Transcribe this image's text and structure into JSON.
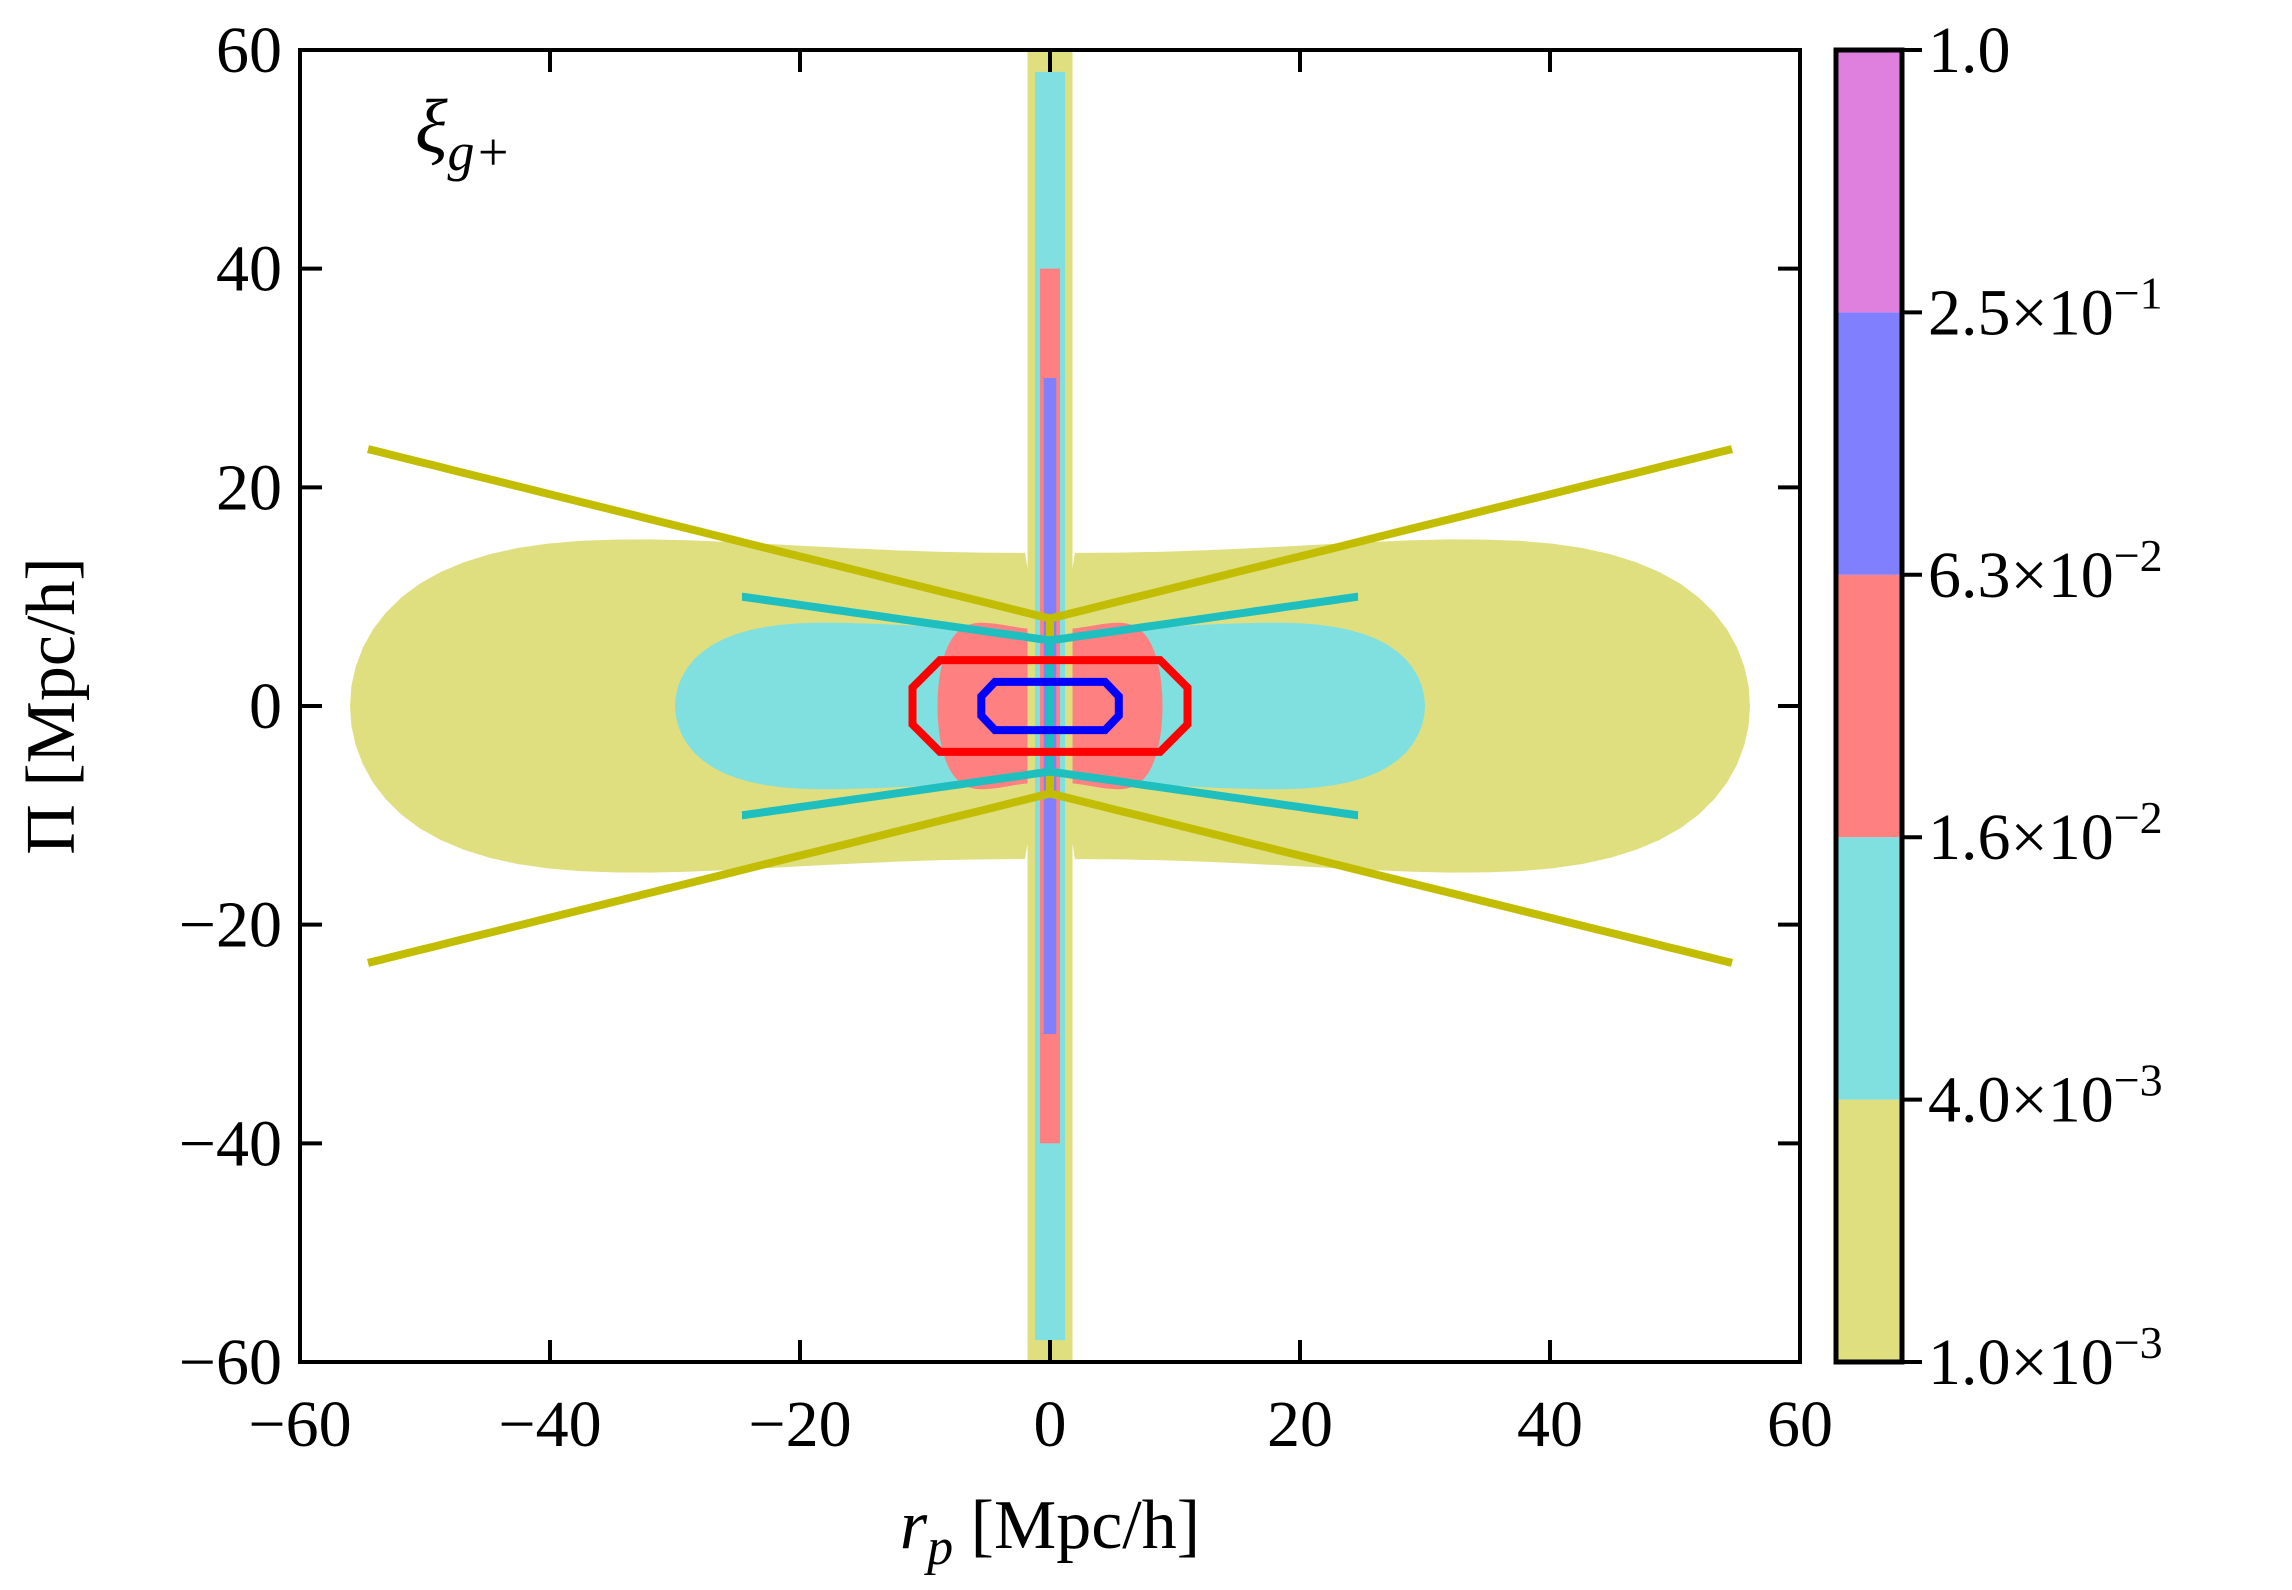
{
  "chart_data": {
    "type": "contour",
    "annotation": {
      "symbol": "ξ",
      "subscript": "g+"
    },
    "xlabel": {
      "var": "r",
      "sub": "p",
      "unit": " [Mpc/h]"
    },
    "ylabel": "Π [Mpc/h]",
    "xlim": [
      -60,
      60
    ],
    "ylim": [
      -60,
      60
    ],
    "xticks": [
      -60,
      -40,
      -20,
      0,
      20,
      40,
      60
    ],
    "yticks": [
      -60,
      -40,
      -20,
      0,
      20,
      40,
      60
    ],
    "xtick_labels": [
      "−60",
      "−40",
      "−20",
      "0",
      "20",
      "40",
      "60"
    ],
    "ytick_labels": [
      "−60",
      "−40",
      "−20",
      "0",
      "20",
      "40",
      "60"
    ],
    "colorbar": {
      "levels": [
        {
          "mant": "1.0",
          "exp": "−3"
        },
        {
          "mant": "4.0",
          "exp": "−3"
        },
        {
          "mant": "1.6",
          "exp": "−2"
        },
        {
          "mant": "6.3",
          "exp": "−2"
        },
        {
          "mant": "2.5",
          "exp": "−1"
        },
        {
          "mant": "1.0",
          "exp": ""
        }
      ],
      "colors": [
        "#dfdf80",
        "#80dfdf",
        "#ff8080",
        "#8080ff",
        "#df80df"
      ]
    },
    "filled_regions": [
      {
        "level": 0,
        "color": "#dfdf80",
        "lobes": {
          "rp": 56,
          "pi": 28,
          "inner": 2
        }
      },
      {
        "level": 1,
        "color": "#80dfdf",
        "lobes": {
          "rp": 30,
          "pi": 14,
          "inner": 1
        }
      },
      {
        "level": 2,
        "color": "#ff8080",
        "lobes": {
          "rp": 9,
          "pi": 14,
          "inner": 0.5
        }
      },
      {
        "level": 3,
        "color": "#8080ff",
        "lobes": {
          "rp": 1.5,
          "pi": 15,
          "inner": 0
        }
      }
    ],
    "model_contours": [
      {
        "level": 0,
        "color": "#c2bd00",
        "rp_extent": 62,
        "pi_max": 23.5,
        "pi_min": 8
      },
      {
        "level": 1,
        "color": "#20bfbf",
        "rp_extent": 28,
        "pi_max": 10,
        "pi_min": 6
      },
      {
        "level": 2,
        "color": "#ff0000",
        "rp_extent": 11,
        "pi_max": 4.2,
        "pi_min": 0
      },
      {
        "level": 3,
        "color": "#0000ff",
        "rp_extent": 5.5,
        "pi_max": 2.2,
        "pi_min": 0
      }
    ]
  }
}
